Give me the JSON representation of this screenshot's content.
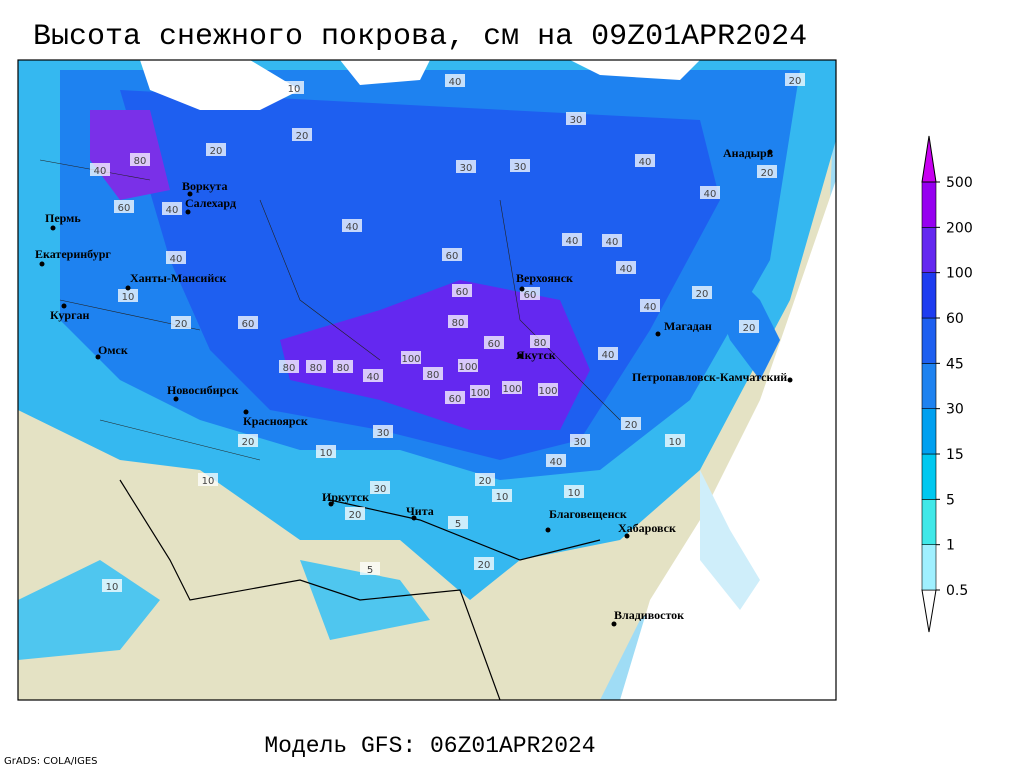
{
  "title": "Высота снежного покрова, см на 09Z01APR2024",
  "model": "Модель GFS: 06Z01APR2024",
  "credit": "GrADS: COLA/IGES",
  "cities": [
    "Воркута",
    "Салехард",
    "Пермь",
    "Екатеринбург",
    "Ханты-Мансийск",
    "Курган",
    "Омск",
    "Новосибирск",
    "Красноярск",
    "Иркутск",
    "Чита",
    "Благовещенск",
    "Хабаровск",
    "Владивосток",
    "Якутск",
    "Верхоянск",
    "Магадан",
    "Петропавловск-Камчатский",
    "Анадырь"
  ],
  "contour_labels": [
    40,
    80,
    60,
    40,
    40,
    10,
    20,
    60,
    80,
    80,
    80,
    40,
    100,
    80,
    100,
    60,
    100,
    100,
    100,
    80,
    60,
    80,
    60,
    40,
    60,
    40,
    40,
    40,
    60,
    40,
    40,
    20,
    30,
    40,
    20,
    10,
    20,
    10,
    30,
    40,
    30,
    30,
    20,
    10,
    20,
    20,
    20,
    40,
    40,
    20,
    20,
    10,
    30,
    20,
    10,
    20,
    5,
    30,
    10,
    5,
    10
  ],
  "legend": {
    "levels": [
      0.5,
      1,
      5,
      15,
      30,
      45,
      60,
      100,
      200,
      500
    ],
    "colors": [
      "#ffffff",
      "#a0f0ff",
      "#40e8e8",
      "#00c8f0",
      "#00a0f0",
      "#1e82f0",
      "#1e5ff0",
      "#1e3cf0",
      "#6428f0",
      "#9600f0",
      "#c800f0"
    ]
  }
}
